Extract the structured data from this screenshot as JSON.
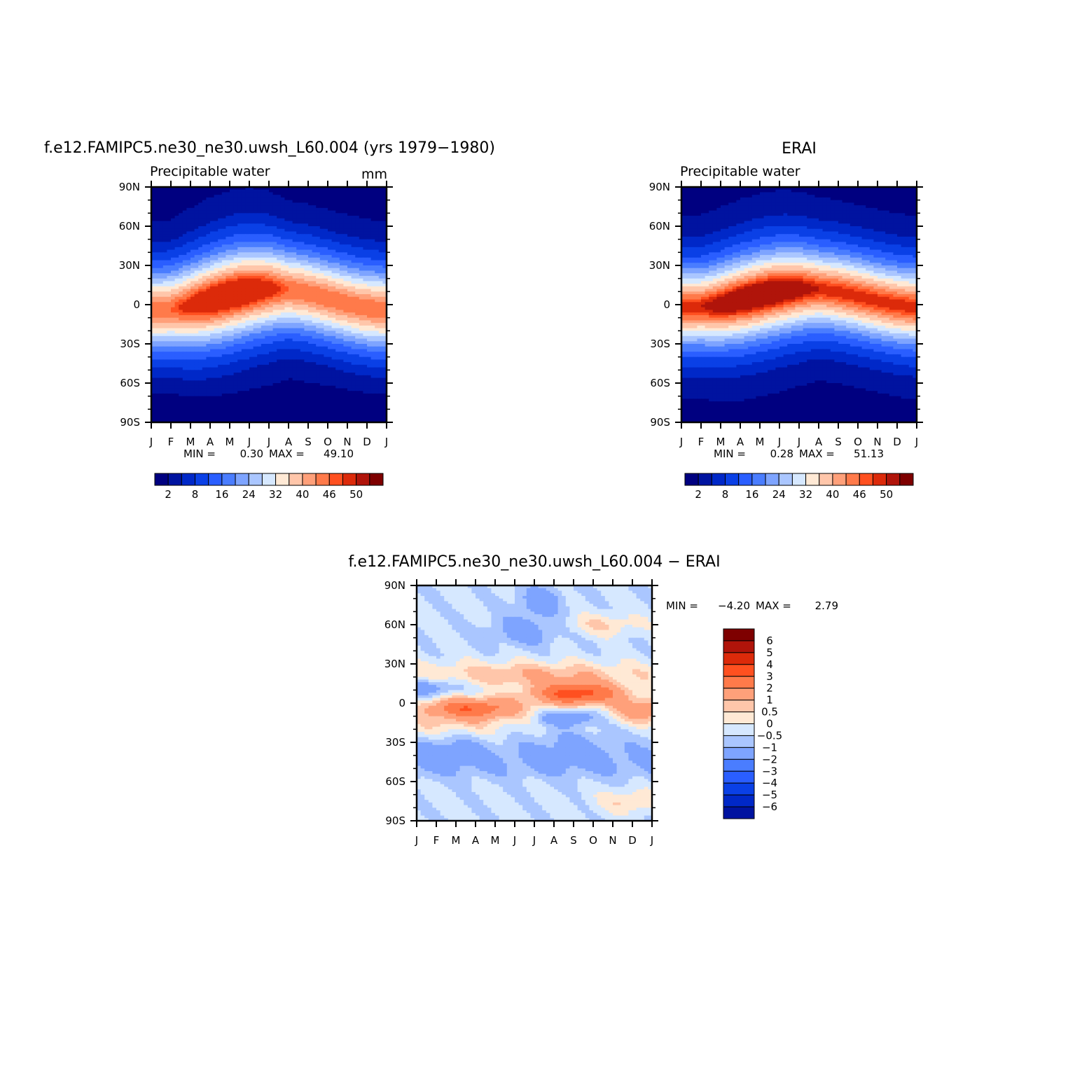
{
  "chart_data": [
    {
      "type": "heatmap",
      "title": "f.e12.FAMIPC5.ne30_ne30.uwsh_L60.004 (yrs 1979−1980)",
      "subtitle_left": "Precipitable water",
      "subtitle_right": "mm",
      "stats": {
        "min_label": "MIN =",
        "min": "0.30",
        "max_label": "MAX =",
        "max": "49.10"
      },
      "x_tick_labels": [
        "J",
        "F",
        "M",
        "A",
        "M",
        "J",
        "J",
        "A",
        "S",
        "O",
        "N",
        "D",
        "J"
      ],
      "y_tick_labels": [
        "90N",
        "60N",
        "30N",
        "0",
        "30S",
        "60S",
        "90S"
      ],
      "ylim": [
        -90,
        90
      ],
      "colorbar": {
        "orientation": "horizontal",
        "labels": [
          "2",
          "8",
          "16",
          "24",
          "32",
          "40",
          "46",
          "50"
        ],
        "colors": [
          "#000080",
          "#0013a0",
          "#0028c8",
          "#0a40e6",
          "#2a5eff",
          "#4a7dff",
          "#7ea4ff",
          "#aac6ff",
          "#d6e8ff",
          "#ffe9d5",
          "#ffc6aa",
          "#ffa07a",
          "#ff7a4a",
          "#ff5020",
          "#dc2a0a",
          "#b0140a",
          "#7e0000"
        ],
        "levels": [
          0,
          2,
          5,
          8,
          12,
          16,
          20,
          24,
          28,
          32,
          36,
          40,
          43,
          46,
          48,
          50,
          52
        ]
      },
      "field": "precipitable_water_model"
    },
    {
      "type": "heatmap",
      "title": "ERAI",
      "subtitle_left": "Precipitable water",
      "stats": {
        "min_label": "MIN =",
        "min": "0.28",
        "max_label": "MAX =",
        "max": "51.13"
      },
      "x_tick_labels": [
        "J",
        "F",
        "M",
        "A",
        "M",
        "J",
        "J",
        "A",
        "S",
        "O",
        "N",
        "D",
        "J"
      ],
      "y_tick_labels": [
        "90N",
        "60N",
        "30N",
        "0",
        "30S",
        "60S",
        "90S"
      ],
      "ylim": [
        -90,
        90
      ],
      "colorbar": {
        "orientation": "horizontal",
        "labels": [
          "2",
          "8",
          "16",
          "24",
          "32",
          "40",
          "46",
          "50"
        ],
        "colors": [
          "#000080",
          "#0013a0",
          "#0028c8",
          "#0a40e6",
          "#2a5eff",
          "#4a7dff",
          "#7ea4ff",
          "#aac6ff",
          "#d6e8ff",
          "#ffe9d5",
          "#ffc6aa",
          "#ffa07a",
          "#ff7a4a",
          "#ff5020",
          "#dc2a0a",
          "#b0140a",
          "#7e0000"
        ],
        "levels": [
          0,
          2,
          5,
          8,
          12,
          16,
          20,
          24,
          28,
          32,
          36,
          40,
          43,
          46,
          48,
          50,
          52
        ]
      },
      "field": "precipitable_water_obs"
    },
    {
      "type": "heatmap",
      "title": "f.e12.FAMIPC5.ne30_ne30.uwsh_L60.004 − ERAI",
      "stats": {
        "min_label": "MIN =",
        "min": "−4.20",
        "max_label": "MAX =",
        "max": "2.79"
      },
      "x_tick_labels": [
        "J",
        "F",
        "M",
        "A",
        "M",
        "J",
        "J",
        "A",
        "S",
        "O",
        "N",
        "D",
        "J"
      ],
      "y_tick_labels": [
        "90N",
        "60N",
        "30N",
        "0",
        "30S",
        "60S",
        "90S"
      ],
      "ylim": [
        -90,
        90
      ],
      "colorbar": {
        "orientation": "vertical",
        "labels": [
          "6",
          "5",
          "4",
          "3",
          "2",
          "1",
          "0.5",
          "0",
          "−0.5",
          "−1",
          "−2",
          "−3",
          "−4",
          "−5",
          "−6"
        ],
        "colors": [
          "#7e0000",
          "#b0140a",
          "#dc2a0a",
          "#ff5020",
          "#ff7a4a",
          "#ffa07a",
          "#ffc6aa",
          "#ffe9d5",
          "#d6e8ff",
          "#aac6ff",
          "#7ea4ff",
          "#4a7dff",
          "#2a5eff",
          "#0a40e6",
          "#0028c8",
          "#0013a0"
        ],
        "levels": [
          -99,
          -6,
          -5,
          -4,
          -3,
          -2,
          -1,
          -0.5,
          0,
          0.5,
          1,
          2,
          3,
          4,
          5,
          6,
          99
        ]
      },
      "field": "difference"
    }
  ]
}
